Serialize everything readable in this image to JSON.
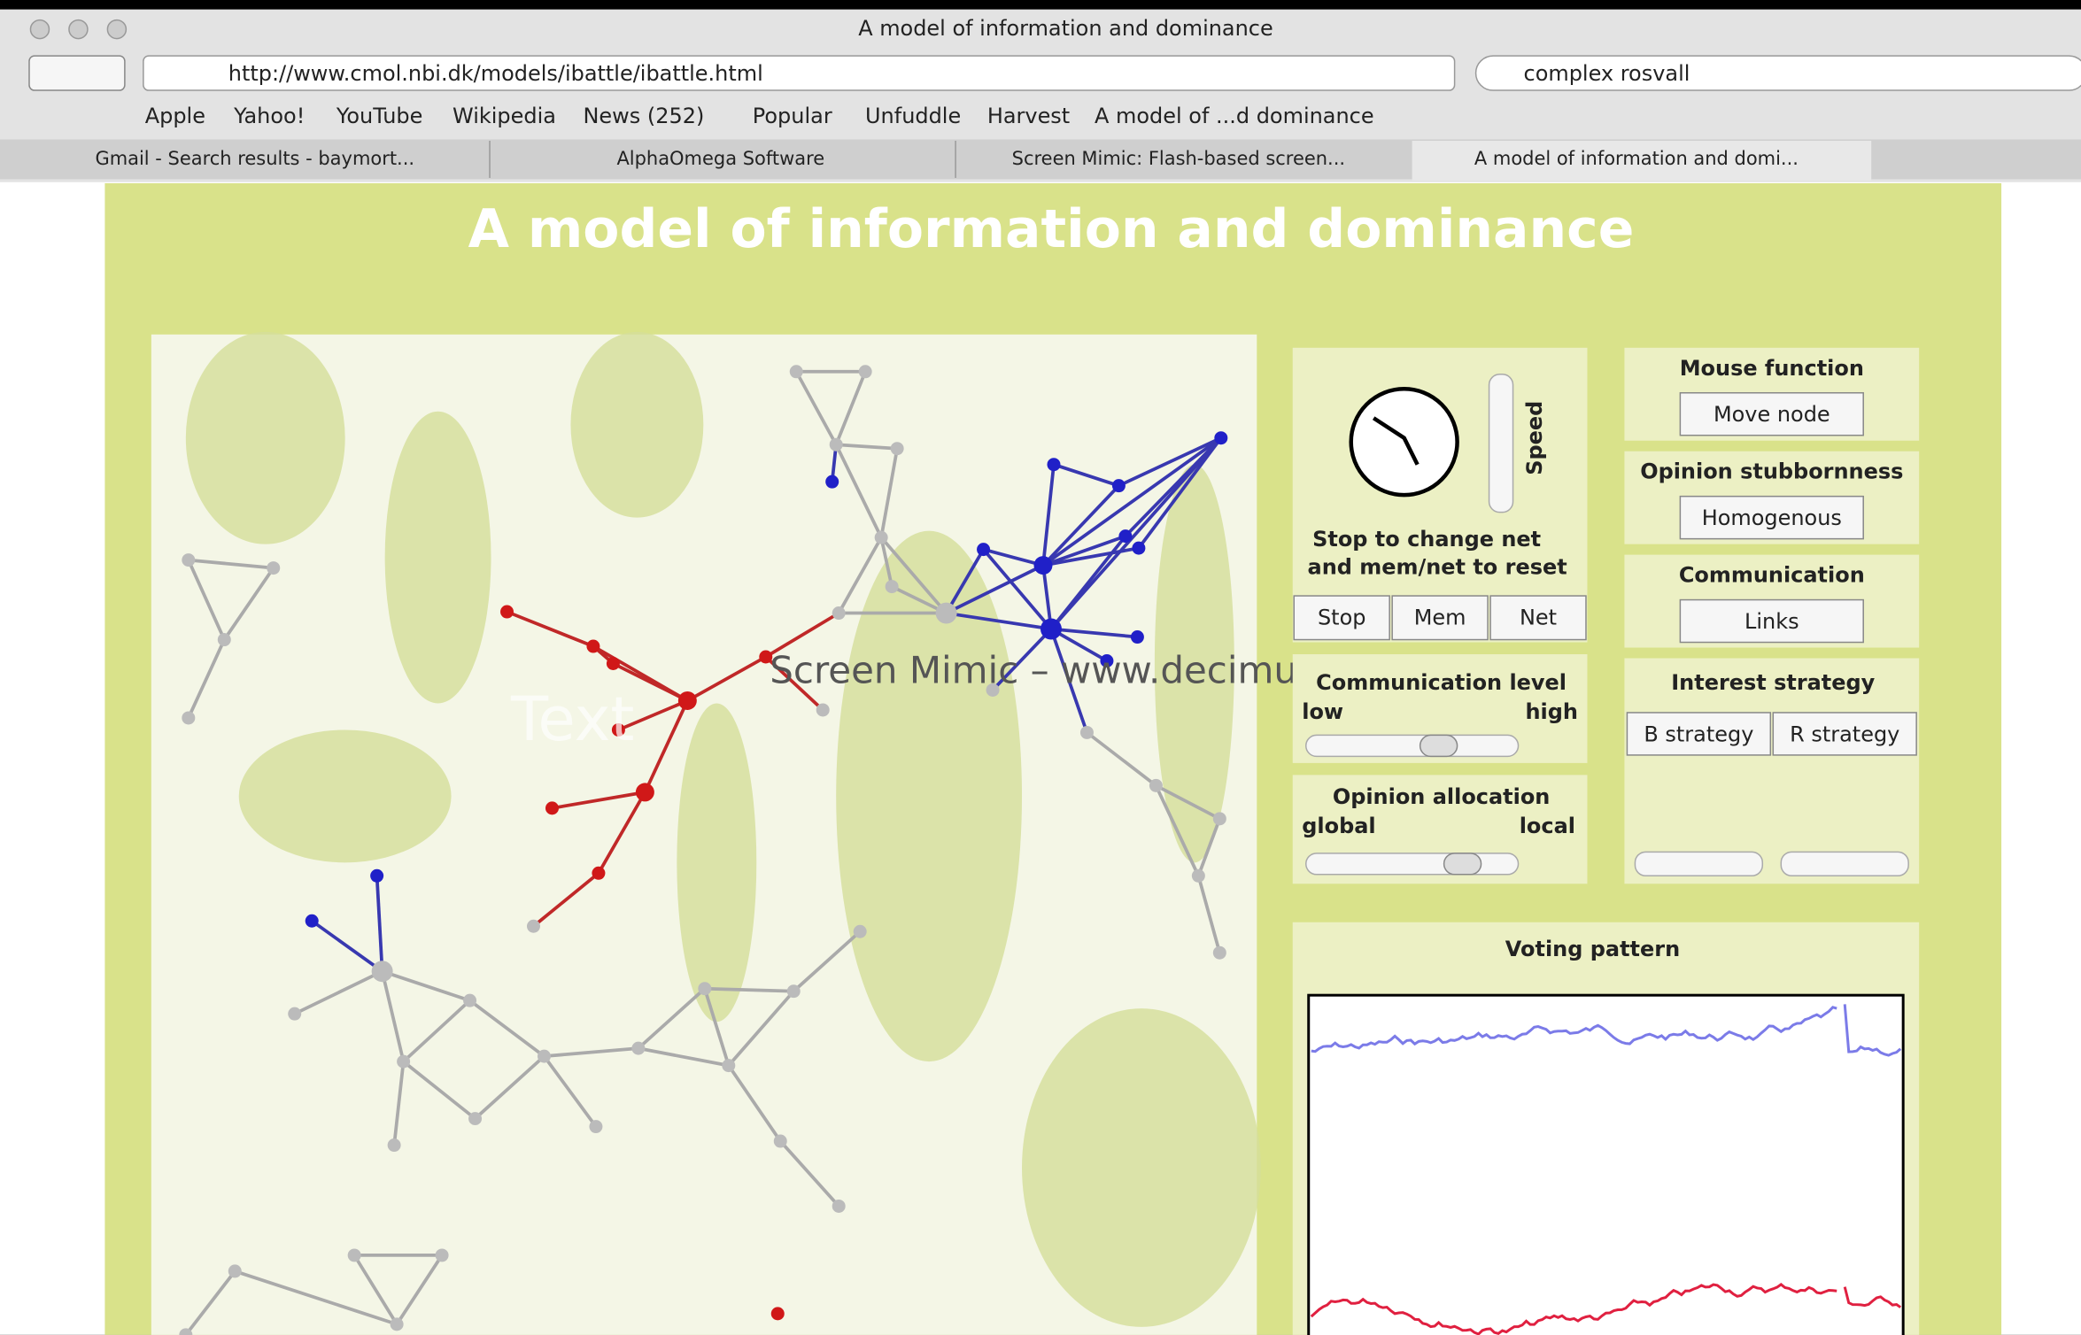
{
  "window": {
    "title": "A model of information and dominance",
    "url": "http://www.cmol.nbi.dk/models/ibattle/ibattle.html",
    "search": "complex rosvall"
  },
  "bookmarks": [
    "Apple",
    "Yahoo!",
    "YouTube",
    "Wikipedia",
    "News (252)",
    "Popular",
    "Unfuddle",
    "Harvest",
    "A model of ...d dominance"
  ],
  "tabs": [
    "Gmail - Search results - baymort...",
    "AlphaOmega Software",
    "Screen Mimic: Flash-based screen...",
    "A model of information and domi..."
  ],
  "page": {
    "title": "A model of information and dominance",
    "watermark": "Screen Mimic – www.decimus.net",
    "overlay_text": "Text"
  },
  "controls": {
    "speed_label": "Speed",
    "instruction": [
      "Stop to change net",
      "and mem/net to reset"
    ],
    "buttons": [
      "Stop",
      "Mem",
      "Net"
    ],
    "communication_level": {
      "label": "Communication level",
      "low": "low",
      "high": "high"
    },
    "opinion_allocation": {
      "label": "Opinion allocation",
      "global": "global",
      "local": "local"
    }
  },
  "panels": [
    {
      "title": "Mouse function",
      "button": "Move node"
    },
    {
      "title": "Opinion stubbornness",
      "button": "Homogenous"
    },
    {
      "title": "Communication",
      "button": "Links"
    }
  ],
  "interest_strategy": {
    "title": "Interest strategy",
    "buttons": [
      "B strategy",
      "R strategy"
    ]
  },
  "voting_pattern": {
    "title": "Voting pattern"
  }
}
